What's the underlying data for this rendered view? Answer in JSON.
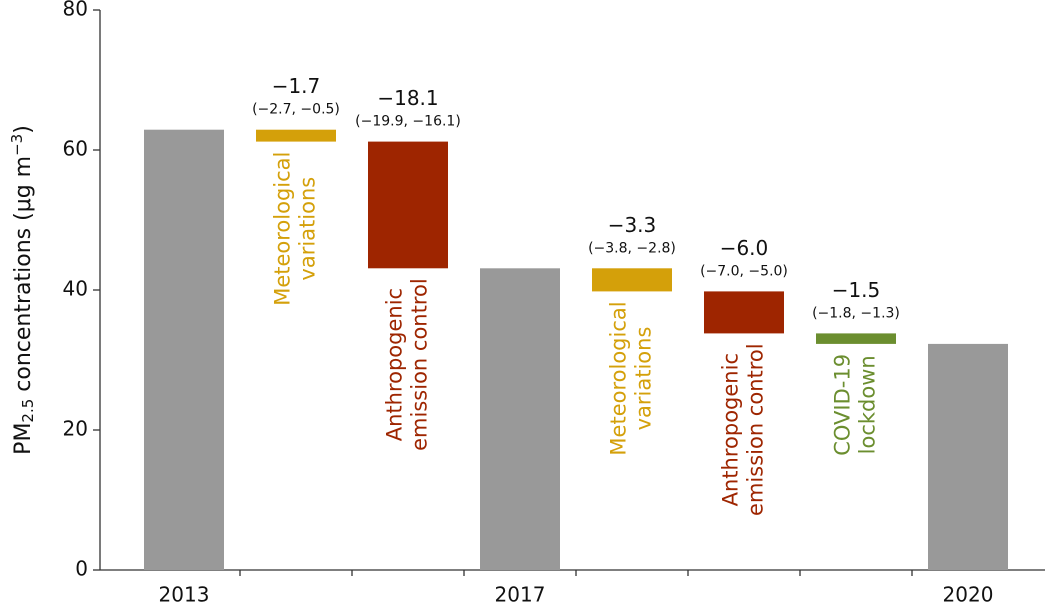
{
  "chart_data": {
    "type": "waterfall",
    "ylabel": {
      "parts": [
        "PM",
        "2.5",
        " concentrations (μg m",
        "−3",
        ")"
      ],
      "styles": [
        "normal",
        "sub",
        "normal",
        "super",
        "normal"
      ]
    },
    "categories": [
      "2013",
      null,
      null,
      "2017",
      null,
      null,
      null,
      "2020"
    ],
    "values": [
      62.9,
      -1.7,
      -18.1,
      43.1,
      -3.3,
      -6.0,
      -1.5,
      32.3
    ],
    "value_labels": [
      null,
      "−1.7",
      "−18.1",
      null,
      "−3.3",
      "−6.0",
      "−1.5",
      null
    ],
    "intervals": [
      null,
      "(−2.7, −0.5)",
      "(−19.9, −16.1)",
      null,
      "(−3.8, −2.8)",
      "(−7.0, −5.0)",
      "(−1.8, −1.3)",
      null
    ],
    "bar_labels": [
      null,
      [
        "Meteorological",
        "variations"
      ],
      [
        "Anthropogenic",
        "emission control"
      ],
      null,
      [
        "Meteorological",
        "variations"
      ],
      [
        "Anthropogenic",
        "emission control"
      ],
      [
        "COVID-19",
        "lockdown"
      ],
      null
    ],
    "colors": [
      "#999999",
      "#d4a00a",
      "#9e2500",
      "#999999",
      "#d4a00a",
      "#9e2500",
      "#6b8e2f",
      "#999999"
    ],
    "ylim": [
      0,
      80
    ],
    "yticks": [
      0,
      20,
      40,
      60,
      80
    ]
  }
}
